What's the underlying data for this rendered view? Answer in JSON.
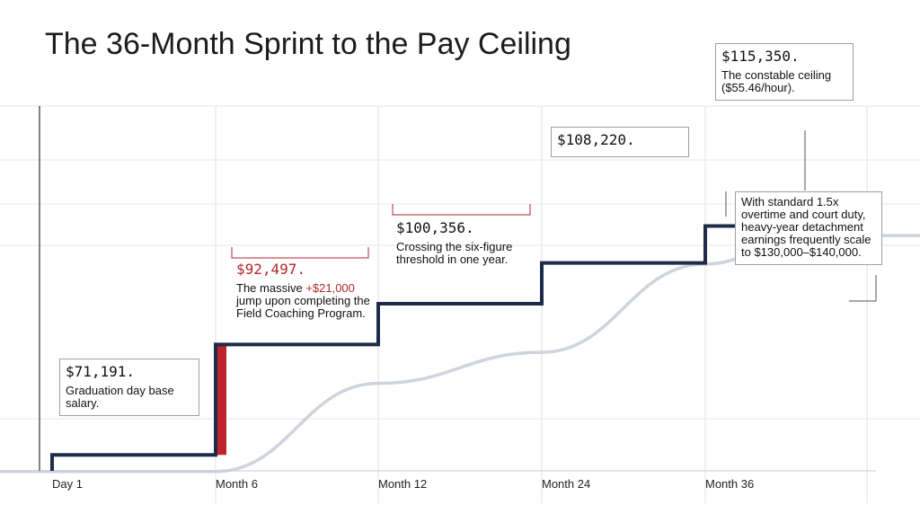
{
  "title": "The 36-Month Sprint to the Pay Ceiling",
  "colors": {
    "step_line": "#1e2c49",
    "jump_highlight": "#c0232b",
    "smooth_curve": "#cfd3dc",
    "grid": "#e5e7ec",
    "axis": "#2a2f3a",
    "accent_text": "#b3262d"
  },
  "chart_data": {
    "type": "line",
    "title": "The 36-Month Sprint to the Pay Ceiling",
    "xlabel": "",
    "ylabel": "",
    "x_categories": [
      "Day 1",
      "Month 6",
      "Month 12",
      "Month 24",
      "Month 36"
    ],
    "ylim": [
      65000,
      120000
    ],
    "grid": true,
    "series": [
      {
        "kind": "step",
        "x": [
          "Day 1",
          "Month 6",
          "Month 12",
          "Month 24",
          "Month 36"
        ],
        "values": [
          71191,
          92497,
          100356,
          108220,
          115350
        ]
      },
      {
        "kind": "smooth",
        "x": [
          "Day 1",
          "Month 6",
          "Month 12",
          "Month 24",
          "Month 36"
        ],
        "values": [
          68000,
          85000,
          91000,
          108000,
          113500
        ]
      }
    ],
    "annotations": [
      {
        "amount": "$71,191.",
        "text": "Graduation day base salary."
      },
      {
        "amount": "$92,497.",
        "text_before": "The massive ",
        "highlight": "+$21,000",
        "text_after": " jump upon completing the Field Coaching Program."
      },
      {
        "amount": "$100,356.",
        "text": "Crossing the six-figure threshold in one year."
      },
      {
        "amount": "$108,220.",
        "text": ""
      },
      {
        "amount": "$115,350.",
        "text": "The constable ceiling ($55.46/hour)."
      },
      {
        "amount": "",
        "text": "With standard 1.5x overtime and court duty, heavy-year detachment earnings frequently scale to $130,000–$140,000."
      }
    ]
  }
}
